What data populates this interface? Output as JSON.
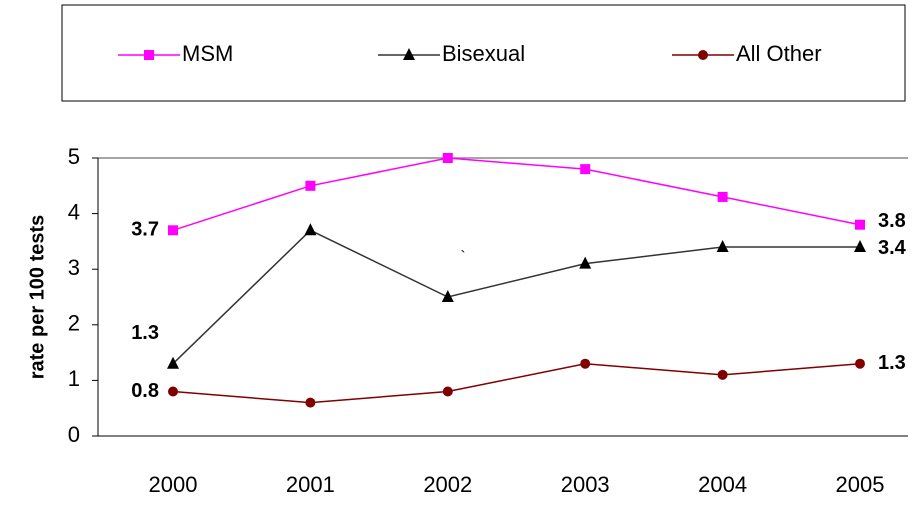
{
  "chart_data": {
    "type": "line",
    "y_label": "rate per 100 tests",
    "categories": [
      "2000",
      "2001",
      "2002",
      "2003",
      "2004",
      "2005"
    ],
    "series": [
      {
        "name": "MSM",
        "color": "#ff00ff",
        "marker": "square",
        "values": [
          3.7,
          4.5,
          5.0,
          4.8,
          4.3,
          3.8
        ]
      },
      {
        "name": "Bisexual",
        "color": "#333333",
        "marker": "triangle",
        "values": [
          1.3,
          3.7,
          2.5,
          3.1,
          3.4,
          3.4
        ]
      },
      {
        "name": "All Other",
        "color": "#800000",
        "marker": "circle",
        "values": [
          0.8,
          0.6,
          0.8,
          1.3,
          1.1,
          1.3
        ]
      }
    ],
    "data_labels": "ends",
    "annotation": "`",
    "ylim": [
      0,
      5
    ],
    "yticks": [
      0,
      1,
      2,
      3,
      4,
      5
    ],
    "grid": false,
    "legend": "top"
  }
}
